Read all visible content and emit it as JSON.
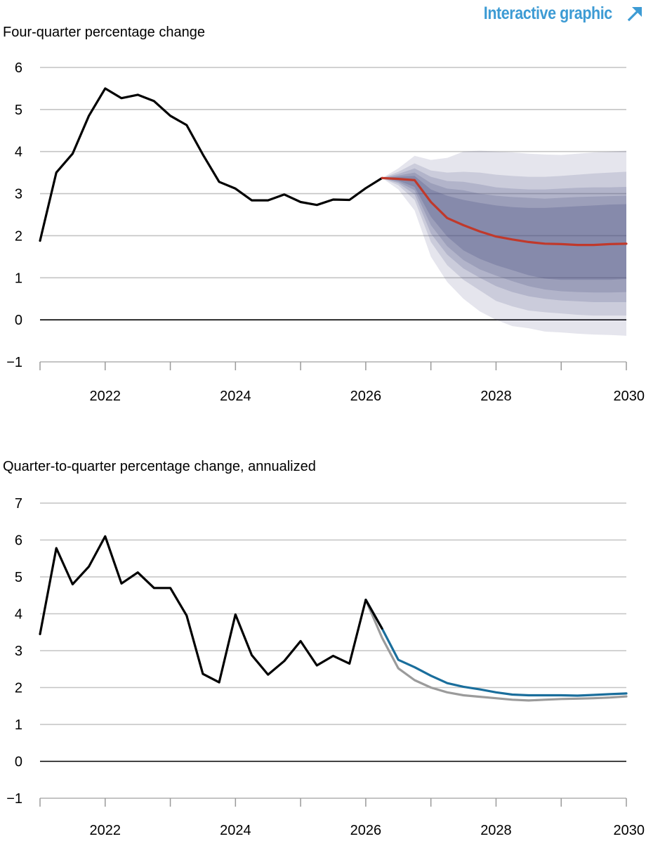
{
  "header": {
    "link_label": "Interactive graphic",
    "link_icon": "arrow-up-right-icon",
    "link_color": "#3d9bd4"
  },
  "chart_data": [
    {
      "type": "line",
      "ylabel": "Four-quarter percentage change",
      "ylim": [
        -1,
        6
      ],
      "yticks": [
        -1,
        0,
        1,
        2,
        3,
        4,
        5,
        6
      ],
      "ytick_labels": [
        "−1",
        "0",
        "1",
        "2",
        "3",
        "4",
        "5",
        "6"
      ],
      "xlim": [
        2021.0,
        2030.0
      ],
      "xticks": [
        2022,
        2024,
        2026,
        2028,
        2030
      ],
      "xtick_labels": [
        "2022",
        "2024",
        "2026",
        "2028",
        "2030"
      ],
      "grid": true,
      "series": [
        {
          "role": "history",
          "color": "#000000",
          "x": [
            2021.0,
            2021.25,
            2021.5,
            2021.75,
            2022.0,
            2022.25,
            2022.5,
            2022.75,
            2023.0,
            2023.25,
            2023.5,
            2023.75,
            2024.0,
            2024.25,
            2024.5,
            2024.75,
            2025.0,
            2025.25,
            2025.5,
            2025.75,
            2026.0,
            2026.25
          ],
          "y": [
            1.88,
            3.5,
            3.95,
            4.85,
            5.5,
            5.27,
            5.35,
            5.2,
            4.85,
            4.63,
            3.93,
            3.28,
            3.12,
            2.84,
            2.84,
            2.98,
            2.8,
            2.73,
            2.86,
            2.85,
            3.13,
            3.37
          ]
        },
        {
          "role": "forecast",
          "color": "#c0392b",
          "x": [
            2026.25,
            2026.5,
            2026.75,
            2027.0,
            2027.25,
            2027.5,
            2027.75,
            2028.0,
            2028.25,
            2028.5,
            2028.75,
            2029.0,
            2029.25,
            2029.5,
            2029.75,
            2030.0
          ],
          "y": [
            3.37,
            3.35,
            3.32,
            2.8,
            2.42,
            2.25,
            2.1,
            1.98,
            1.91,
            1.85,
            1.81,
            1.8,
            1.78,
            1.78,
            1.8,
            1.81
          ]
        }
      ],
      "bands": {
        "color": "#44497f",
        "x": [
          2026.25,
          2026.5,
          2026.75,
          2027.0,
          2027.25,
          2027.5,
          2027.75,
          2028.0,
          2028.25,
          2028.5,
          2028.75,
          2029.0,
          2029.25,
          2029.5,
          2029.75,
          2030.0
        ],
        "layers": [
          {
            "opacity": 0.14,
            "upper": [
              3.37,
              3.6,
              3.9,
              3.8,
              3.85,
              4.0,
              4.02,
              4.0,
              3.98,
              3.95,
              3.93,
              3.92,
              3.95,
              3.98,
              4.0,
              4.02
            ],
            "lower": [
              3.37,
              3.1,
              2.6,
              1.5,
              0.9,
              0.5,
              0.2,
              0.0,
              -0.15,
              -0.2,
              -0.28,
              -0.3,
              -0.33,
              -0.35,
              -0.36,
              -0.38
            ]
          },
          {
            "opacity": 0.16,
            "upper": [
              3.37,
              3.52,
              3.72,
              3.55,
              3.5,
              3.52,
              3.5,
              3.45,
              3.42,
              3.4,
              3.4,
              3.42,
              3.45,
              3.48,
              3.5,
              3.52
            ],
            "lower": [
              3.37,
              3.2,
              2.85,
              1.85,
              1.3,
              0.95,
              0.7,
              0.45,
              0.32,
              0.22,
              0.18,
              0.15,
              0.12,
              0.1,
              0.1,
              0.1
            ]
          },
          {
            "opacity": 0.18,
            "upper": [
              3.37,
              3.47,
              3.6,
              3.4,
              3.3,
              3.28,
              3.22,
              3.15,
              3.12,
              3.1,
              3.1,
              3.12,
              3.14,
              3.15,
              3.15,
              3.16
            ],
            "lower": [
              3.37,
              3.25,
              2.98,
              2.05,
              1.55,
              1.22,
              1.0,
              0.8,
              0.66,
              0.56,
              0.5,
              0.46,
              0.44,
              0.42,
              0.42,
              0.42
            ]
          },
          {
            "opacity": 0.2,
            "upper": [
              3.37,
              3.43,
              3.5,
              3.25,
              3.12,
              3.08,
              3.0,
              2.95,
              2.92,
              2.9,
              2.88,
              2.9,
              2.92,
              2.93,
              2.94,
              2.95
            ],
            "lower": [
              3.37,
              3.28,
              3.08,
              2.25,
              1.75,
              1.42,
              1.2,
              1.05,
              0.92,
              0.8,
              0.72,
              0.68,
              0.66,
              0.65,
              0.65,
              0.66
            ]
          },
          {
            "opacity": 0.24,
            "upper": [
              3.37,
              3.4,
              3.42,
              3.1,
              2.95,
              2.85,
              2.78,
              2.72,
              2.68,
              2.66,
              2.66,
              2.68,
              2.7,
              2.72,
              2.74,
              2.75
            ],
            "lower": [
              3.37,
              3.31,
              3.16,
              2.45,
              1.98,
              1.65,
              1.45,
              1.3,
              1.18,
              1.06,
              0.98,
              0.95,
              0.95,
              0.95,
              0.95,
              0.97
            ]
          }
        ]
      }
    },
    {
      "type": "line",
      "ylabel": "Quarter-to-quarter percentage change, annualized",
      "ylim": [
        -1,
        7
      ],
      "yticks": [
        -1,
        0,
        1,
        2,
        3,
        4,
        5,
        6,
        7
      ],
      "ytick_labels": [
        "−1",
        "0",
        "1",
        "2",
        "3",
        "4",
        "5",
        "6",
        "7"
      ],
      "xlim": [
        2021.0,
        2030.0
      ],
      "xticks": [
        2022,
        2024,
        2026,
        2028,
        2030
      ],
      "xtick_labels": [
        "2022",
        "2024",
        "2026",
        "2028",
        "2030"
      ],
      "grid": true,
      "series": [
        {
          "role": "alternate-forecast",
          "color": "#9b9b9b",
          "x": [
            2026.0,
            2026.25,
            2026.5,
            2026.75,
            2027.0,
            2027.25,
            2027.5,
            2027.75,
            2028.0,
            2028.25,
            2028.5,
            2028.75,
            2029.0,
            2029.25,
            2029.5,
            2029.75,
            2030.0
          ],
          "y": [
            4.38,
            3.35,
            2.52,
            2.2,
            2.0,
            1.87,
            1.79,
            1.75,
            1.71,
            1.67,
            1.65,
            1.67,
            1.69,
            1.7,
            1.71,
            1.73,
            1.76
          ]
        },
        {
          "role": "forecast",
          "color": "#1a6e9c",
          "x": [
            2026.0,
            2026.25,
            2026.5,
            2026.75,
            2027.0,
            2027.25,
            2027.5,
            2027.75,
            2028.0,
            2028.25,
            2028.5,
            2028.75,
            2029.0,
            2029.25,
            2029.5,
            2029.75,
            2030.0
          ],
          "y": [
            4.38,
            3.6,
            2.75,
            2.55,
            2.32,
            2.12,
            2.02,
            1.95,
            1.87,
            1.81,
            1.79,
            1.79,
            1.79,
            1.78,
            1.8,
            1.82,
            1.84
          ]
        },
        {
          "role": "history",
          "color": "#000000",
          "x": [
            2021.0,
            2021.25,
            2021.5,
            2021.75,
            2022.0,
            2022.25,
            2022.5,
            2022.75,
            2023.0,
            2023.25,
            2023.5,
            2023.75,
            2024.0,
            2024.25,
            2024.5,
            2024.75,
            2025.0,
            2025.25,
            2025.5,
            2025.75,
            2026.0,
            2026.25
          ],
          "y": [
            3.45,
            5.78,
            4.8,
            5.28,
            6.1,
            4.82,
            5.12,
            4.7,
            4.7,
            3.95,
            2.37,
            2.14,
            3.98,
            2.88,
            2.35,
            2.72,
            3.26,
            2.6,
            2.86,
            2.65,
            4.38,
            3.6
          ]
        }
      ]
    }
  ]
}
